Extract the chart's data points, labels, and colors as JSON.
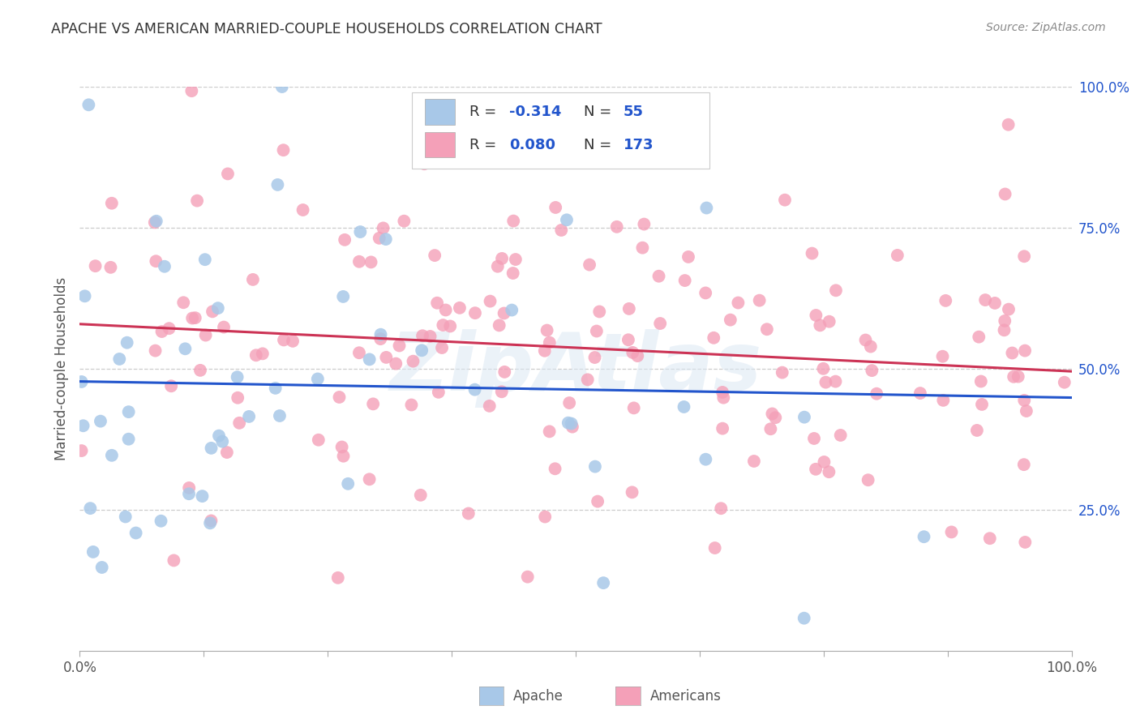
{
  "title": "APACHE VS AMERICAN MARRIED-COUPLE HOUSEHOLDS CORRELATION CHART",
  "source": "Source: ZipAtlas.com",
  "ylabel": "Married-couple Households",
  "apache_R": -0.314,
  "apache_N": 55,
  "american_R": 0.08,
  "american_N": 173,
  "apache_color": "#a8c8e8",
  "american_color": "#f4a0b8",
  "apache_line_color": "#2255cc",
  "american_line_color": "#cc3355",
  "bg_color": "#ffffff",
  "grid_color": "#cccccc",
  "watermark": "ZipAtlas",
  "title_color": "#333333",
  "legend_R_color": "#2255cc",
  "legend_N_color": "#2255cc",
  "ytick_color": "#2255cc",
  "xtick_color": "#555555",
  "apache_seed": 12,
  "american_seed": 99
}
